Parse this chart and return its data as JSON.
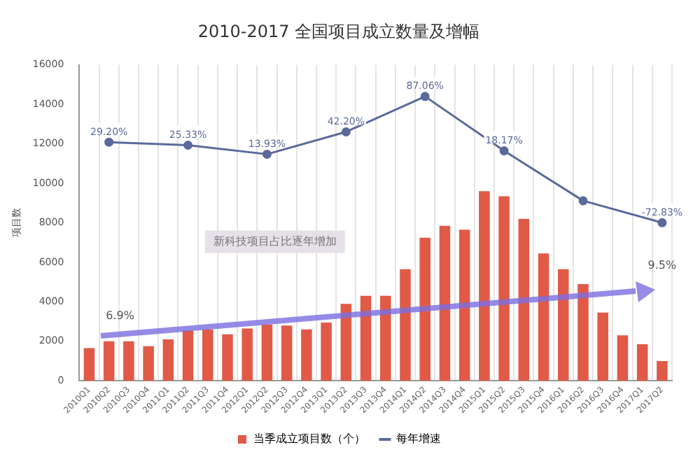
{
  "chart_data": {
    "type": "bar",
    "title": "2010-2017 全国项目成立数量及增幅",
    "ylabel": "项目数",
    "categories": [
      "2010Q1",
      "2010Q2",
      "2010Q3",
      "2010Q4",
      "2011Q1",
      "2011Q2",
      "2011Q3",
      "2011Q4",
      "2012Q1",
      "2012Q2",
      "2012Q3",
      "2012Q4",
      "2013Q1",
      "2013Q2",
      "2013Q3",
      "2013Q4",
      "2014Q1",
      "2014Q2",
      "2014Q3",
      "2014Q4",
      "2015Q1",
      "2015Q2",
      "2015Q3",
      "2015Q4",
      "2016Q1",
      "2016Q2",
      "2016Q3",
      "2016Q4",
      "2017Q1",
      "2017Q2"
    ],
    "series": [
      {
        "name": "当季成立项目数（个）",
        "color": "#e05a47",
        "values": [
          1650,
          2000,
          2000,
          1750,
          2100,
          2550,
          2600,
          2350,
          2650,
          2850,
          2800,
          2600,
          2950,
          3900,
          4300,
          4300,
          5650,
          7250,
          7850,
          7650,
          9600,
          9350,
          8200,
          6450,
          5650,
          4900,
          3450,
          2300,
          1850,
          1000
        ]
      },
      {
        "name": "每年增速",
        "type": "line",
        "axis": "y2",
        "color": "#5b6a9a",
        "x": [
          "2010Q2",
          "2011Q2",
          "2012Q2",
          "2013Q2",
          "2014Q2",
          "2015Q2",
          "2016Q2",
          "2017Q2"
        ],
        "values": [
          29.2,
          25.33,
          13.93,
          42.2,
          87.06,
          18.17,
          -45,
          -72.83
        ],
        "value_labels": [
          "29.20%",
          "25.33%",
          "13.93%",
          "42.20%",
          "87.06%",
          "18.17%",
          null,
          "-72.83%"
        ]
      }
    ],
    "ylim": [
      0,
      16000
    ],
    "yticks": [
      0,
      2000,
      4000,
      6000,
      8000,
      10000,
      12000,
      14000,
      16000
    ],
    "y2lim": [
      -273,
      127
    ],
    "tick_labels": "xy",
    "grid": "x",
    "legend": "bottom",
    "marker": "circle",
    "annotations": [
      "新科技项目占比逐年增加",
      "6.9%",
      "9.5%"
    ]
  }
}
